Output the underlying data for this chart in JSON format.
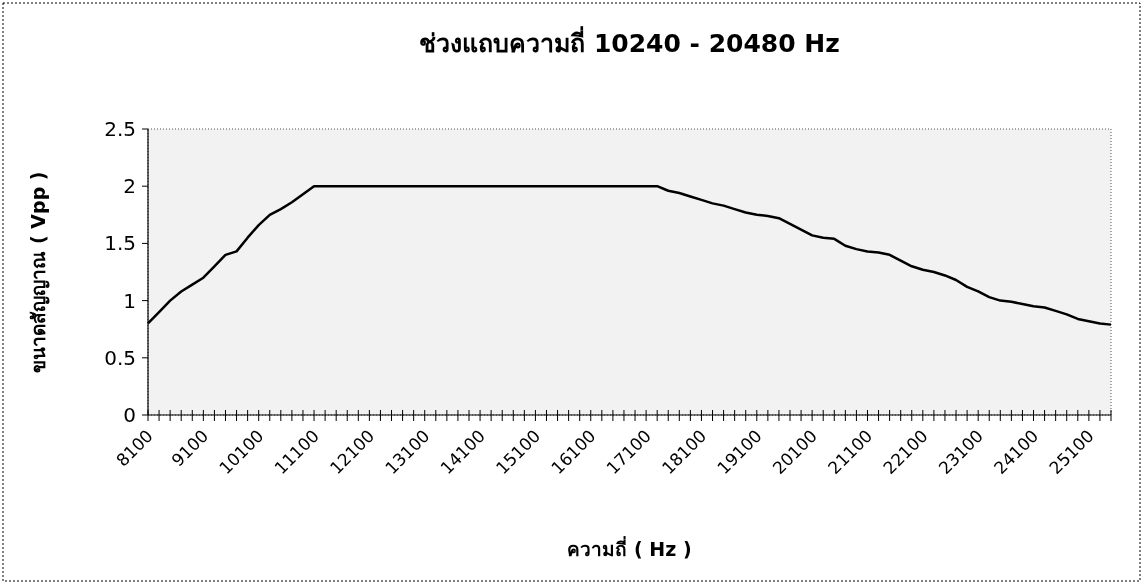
{
  "chart_data": {
    "type": "line",
    "title": "ช่วงแถบความถี่ 10240 - 20480 Hz",
    "xlabel": "ความถี่  ( Hz )",
    "ylabel": "ขนาดสัญญาณ ( Vpp )",
    "categories": [
      "8100",
      null,
      null,
      null,
      null,
      "9100",
      null,
      null,
      null,
      null,
      "10100",
      null,
      null,
      null,
      null,
      "11100",
      null,
      null,
      null,
      null,
      "12100",
      null,
      null,
      null,
      null,
      "13100",
      null,
      null,
      null,
      null,
      "14100",
      null,
      null,
      null,
      null,
      "15100",
      null,
      null,
      null,
      null,
      "16100",
      null,
      null,
      null,
      null,
      "17100",
      null,
      null,
      null,
      null,
      "18100",
      null,
      null,
      null,
      null,
      "19100",
      null,
      null,
      null,
      null,
      "20100",
      null,
      null,
      null,
      null,
      "21100",
      null,
      null,
      null,
      null,
      "22100",
      null,
      null,
      null,
      null,
      "23100",
      null,
      null,
      null,
      null,
      "24100",
      null,
      null,
      null,
      null,
      "25100",
      null,
      null
    ],
    "series": [
      {
        "color": "#000000",
        "values": [
          0.8,
          0.9,
          1.0,
          1.08,
          1.14,
          1.2,
          1.3,
          1.4,
          1.43,
          1.55,
          1.66,
          1.75,
          1.8,
          1.86,
          1.93,
          2.0,
          2.0,
          2.0,
          2.0,
          2.0,
          2.0,
          2.0,
          2.0,
          2.0,
          2.0,
          2.0,
          2.0,
          2.0,
          2.0,
          2.0,
          2.0,
          2.0,
          2.0,
          2.0,
          2.0,
          2.0,
          2.0,
          2.0,
          2.0,
          2.0,
          2.0,
          2.0,
          2.0,
          2.0,
          2.0,
          2.0,
          2.0,
          1.96,
          1.94,
          1.91,
          1.88,
          1.85,
          1.83,
          1.8,
          1.77,
          1.75,
          1.74,
          1.72,
          1.67,
          1.62,
          1.57,
          1.55,
          1.54,
          1.48,
          1.45,
          1.43,
          1.42,
          1.4,
          1.35,
          1.3,
          1.27,
          1.25,
          1.22,
          1.18,
          1.12,
          1.08,
          1.03,
          1.0,
          0.99,
          0.97,
          0.95,
          0.94,
          0.91,
          0.88,
          0.84,
          0.82,
          0.8,
          0.79
        ]
      }
    ],
    "ylim": [
      0,
      2.5
    ],
    "yticks": [
      0,
      0.5,
      1,
      1.5,
      2,
      2.5
    ],
    "grid": false,
    "marker": "none",
    "line_style": "solid"
  }
}
